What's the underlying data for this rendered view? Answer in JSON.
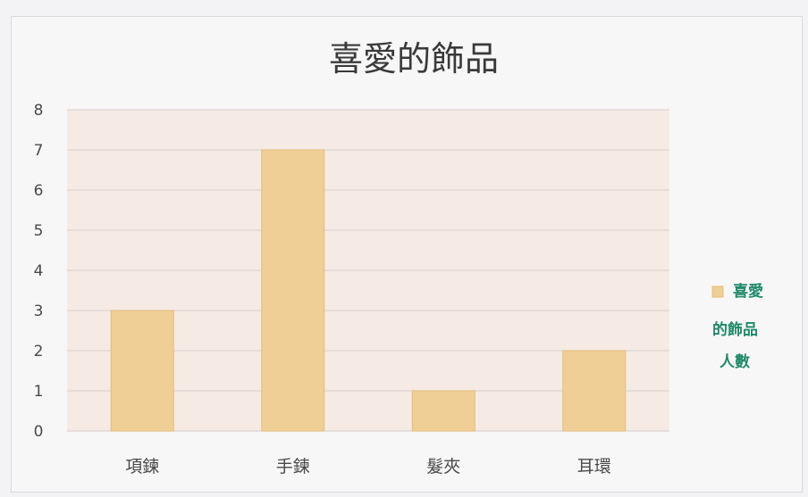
{
  "chart_data": {
    "type": "bar",
    "title": "喜愛的飾品",
    "categories": [
      "項鍊",
      "手鍊",
      "髮夾",
      "耳環"
    ],
    "series": [
      {
        "name": "喜愛的飾品人數",
        "values": [
          3,
          7,
          1,
          2
        ]
      }
    ],
    "ylim": [
      0,
      8
    ],
    "yticks": [
      "0",
      "1",
      "2",
      "3",
      "4",
      "5",
      "6",
      "7",
      "8"
    ],
    "grid": true,
    "legend_position": "right",
    "legend_lines": [
      "喜愛",
      "的飾品",
      "人數"
    ],
    "colors": {
      "bar": "#f0cf96",
      "bar_edge": "#e3bc7b",
      "plot_background": "#f6ebe4",
      "gridline": "#dcd2d0",
      "legend_text": "#1f8a6a"
    }
  }
}
